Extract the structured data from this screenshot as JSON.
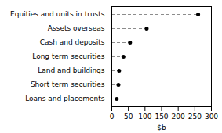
{
  "chart_data": {
    "type": "lollipop",
    "orientation": "horizontal",
    "categories": [
      "Loans and placements",
      "Short term securities",
      "Land and buildings",
      "Long term securities",
      "Cash and deposits",
      "Assets overseas",
      "Equities and units in trusts"
    ],
    "values": [
      15,
      20,
      22,
      35,
      55,
      105,
      260
    ],
    "xlabel": "$b",
    "xlim": [
      0,
      300
    ],
    "xticks": [
      0,
      50,
      100,
      150,
      200,
      250,
      300
    ],
    "line_style": "dashed",
    "marker": "circle",
    "grid": false
  }
}
